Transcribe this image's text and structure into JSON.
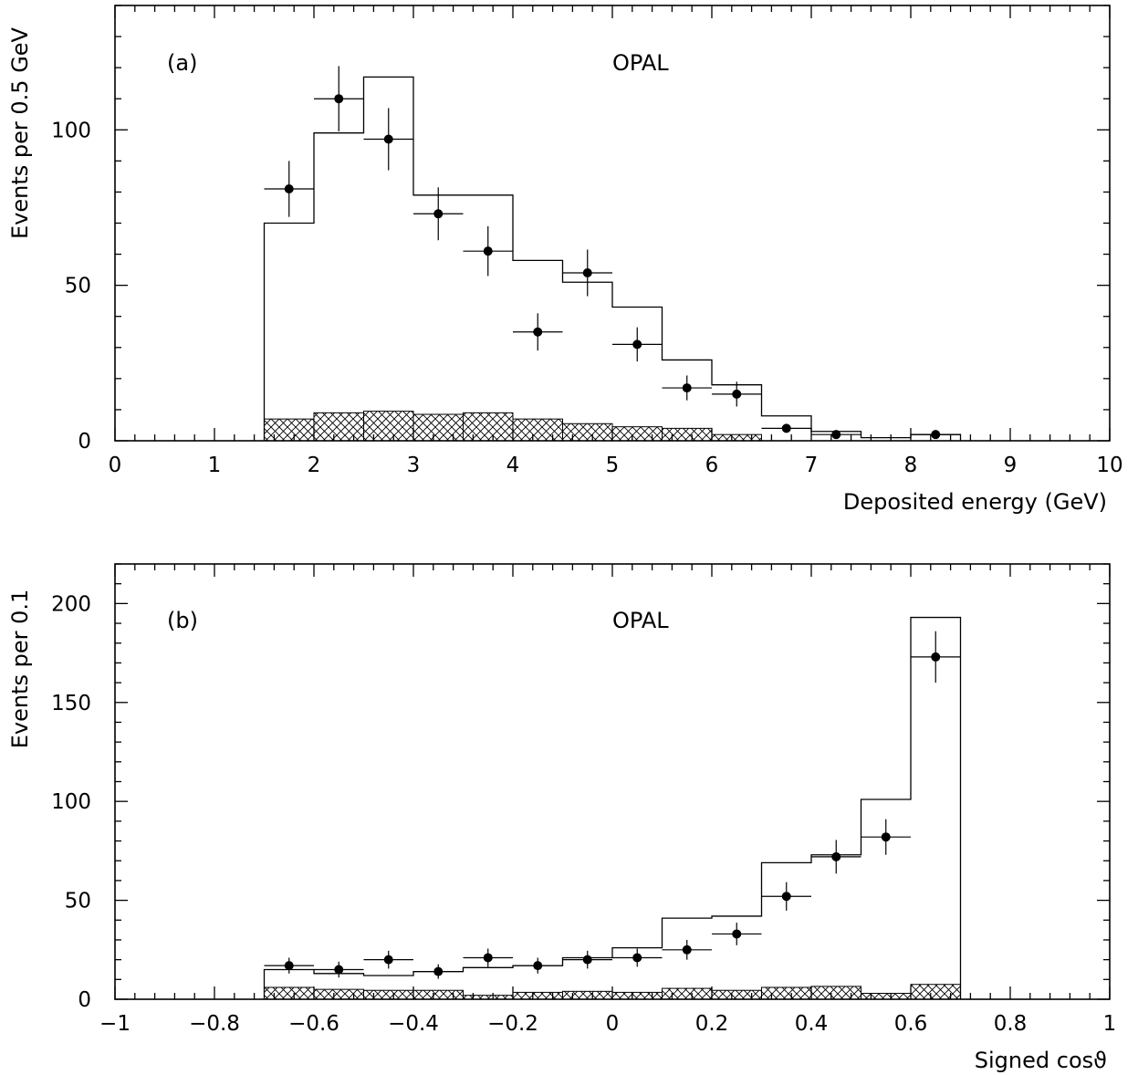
{
  "chart_data": [
    {
      "type": "bar",
      "panel_label": "(a)",
      "title": "OPAL",
      "xlabel": "Deposited energy (GeV)",
      "ylabel": "Events per 0.5 GeV",
      "xlim": [
        0,
        10
      ],
      "ylim": [
        0,
        140
      ],
      "xticks": [
        0,
        1,
        2,
        3,
        4,
        5,
        6,
        7,
        8,
        9,
        10
      ],
      "xtick_labels": [
        "0",
        "1",
        "2",
        "3",
        "4",
        "5",
        "6",
        "7",
        "8",
        "9",
        "10"
      ],
      "yticks": [
        0,
        50,
        100
      ],
      "ytick_labels": [
        "0",
        "50",
        "100"
      ],
      "bin_edges": [
        1.5,
        2,
        2.5,
        3,
        3.5,
        4,
        4.5,
        5,
        5.5,
        6,
        6.5,
        7,
        7.5,
        8,
        8.5
      ],
      "series": [
        {
          "kind": "histogram",
          "values": [
            70,
            99,
            117,
            79,
            79,
            58,
            51,
            43,
            26,
            18,
            8,
            3,
            1,
            2
          ]
        },
        {
          "kind": "hatched-background",
          "values": [
            7,
            9,
            9.5,
            8.5,
            9,
            7,
            5.5,
            4.5,
            4,
            2,
            0,
            0,
            0,
            0
          ]
        },
        {
          "kind": "points",
          "x": [
            1.75,
            2.25,
            2.75,
            3.25,
            3.75,
            4.25,
            4.75,
            5.25,
            5.75,
            6.25,
            6.75,
            7.25,
            8.25
          ],
          "y": [
            81,
            110,
            97,
            73,
            61,
            35,
            54,
            31,
            17,
            15,
            4,
            2,
            2
          ],
          "yerr": [
            9,
            10.5,
            10,
            8.5,
            8,
            6,
            7.5,
            5.5,
            4,
            4,
            0,
            0,
            0
          ],
          "xerr": 0.25
        }
      ]
    },
    {
      "type": "bar",
      "panel_label": "(b)",
      "title": "OPAL",
      "xlabel": "Signed cosϑ",
      "ylabel": "Events per 0.1",
      "xlim": [
        -1,
        1
      ],
      "ylim": [
        0,
        220
      ],
      "xticks": [
        -1,
        -0.8,
        -0.6,
        -0.4,
        -0.2,
        0,
        0.2,
        0.4,
        0.6,
        0.8,
        1
      ],
      "xtick_labels": [
        "−1",
        "−0.8",
        "−0.6",
        "−0.4",
        "−0.2",
        "0",
        "0.2",
        "0.4",
        "0.6",
        "0.8",
        "1"
      ],
      "yticks": [
        0,
        50,
        100,
        150,
        200
      ],
      "ytick_labels": [
        "0",
        "50",
        "100",
        "150",
        "200"
      ],
      "bin_edges": [
        -0.7,
        -0.6,
        -0.5,
        -0.4,
        -0.3,
        -0.2,
        -0.1,
        0,
        0.1,
        0.2,
        0.3,
        0.4,
        0.5,
        0.6,
        0.7
      ],
      "series": [
        {
          "kind": "histogram",
          "values": [
            15,
            13,
            12,
            14,
            16,
            17,
            21,
            26,
            41,
            42,
            69,
            73,
            101,
            193
          ]
        },
        {
          "kind": "hatched-background",
          "values": [
            6,
            5,
            4.5,
            4.5,
            2,
            3.5,
            4,
            3.5,
            5.5,
            4.5,
            6,
            6.5,
            3,
            7.5
          ]
        },
        {
          "kind": "points",
          "x": [
            -0.65,
            -0.55,
            -0.45,
            -0.35,
            -0.25,
            -0.15,
            -0.05,
            0.05,
            0.15,
            0.25,
            0.35,
            0.45,
            0.55,
            0.65
          ],
          "y": [
            17,
            15,
            20,
            14,
            21,
            17,
            20,
            21,
            25,
            33,
            52,
            72,
            82,
            173
          ],
          "yerr": [
            4,
            4,
            4.5,
            3.7,
            4.6,
            4,
            4.5,
            4.6,
            5,
            5.7,
            7.2,
            8.5,
            9,
            13
          ],
          "xerr": 0.05
        }
      ]
    }
  ]
}
